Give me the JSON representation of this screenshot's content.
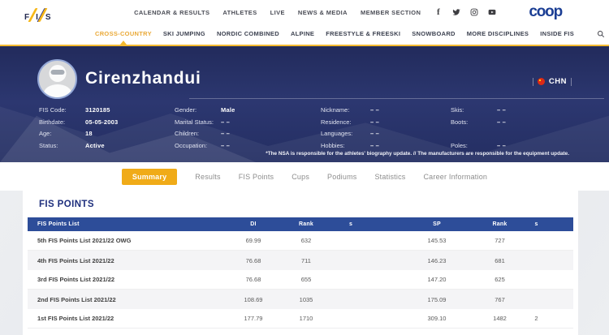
{
  "header": {
    "fis_letters": [
      "F",
      "I",
      "S"
    ],
    "nav_items": [
      "CALENDAR & RESULTS",
      "ATHLETES",
      "LIVE",
      "NEWS & MEDIA",
      "MEMBER SECTION"
    ],
    "social_icons": [
      "facebook",
      "twitter",
      "instagram",
      "youtube"
    ],
    "coop_logo": "coop"
  },
  "discipline_nav": {
    "items": [
      "CROSS-COUNTRY",
      "SKI JUMPING",
      "NORDIC COMBINED",
      "ALPINE",
      "FREESTYLE & FREESKI",
      "SNOWBOARD",
      "MORE DISCIPLINES",
      "INSIDE FIS"
    ],
    "active_index": 0,
    "search_icon": "magnifier"
  },
  "athlete": {
    "name": "Cirenzhandui",
    "nation": "CHN",
    "bio_columns": [
      {
        "fields": [
          {
            "label": "FIS Code:",
            "value": "3120185"
          },
          {
            "label": "Birthdate:",
            "value": "05-05-2003"
          },
          {
            "label": "Age:",
            "value": "18"
          },
          {
            "label": "Status:",
            "value": "Active"
          }
        ]
      },
      {
        "fields": [
          {
            "label": "Gender:",
            "value": "Male"
          },
          {
            "label": "Marital Status:",
            "value": "– –"
          },
          {
            "label": "Children:",
            "value": "– –"
          },
          {
            "label": "Occupation:",
            "value": "– –"
          }
        ]
      },
      {
        "fields": [
          {
            "label": "Nickname:",
            "value": "– –"
          },
          {
            "label": "Residence:",
            "value": "– –"
          },
          {
            "label": "Languages:",
            "value": "– –"
          },
          {
            "label": "Hobbies:",
            "value": "– –"
          }
        ]
      },
      {
        "fields": [
          {
            "label": "Skis:",
            "value": "– –"
          },
          {
            "label": "Boots:",
            "value": "– –"
          },
          {
            "label": "Poles:",
            "value": "– –"
          }
        ]
      }
    ],
    "disclaimer": "*The NSA is responsible for the athletes' biography update. // The manufacturers are responsible for the equipment update."
  },
  "tabs": {
    "items": [
      "Summary",
      "Results",
      "FIS Points",
      "Cups",
      "Podiums",
      "Statistics",
      "Career Information"
    ],
    "active_index": 0
  },
  "fis_points": {
    "title": "FIS POINTS",
    "headers": [
      "FIS Points List",
      "DI",
      "Rank",
      "s",
      "SP",
      "Rank",
      "s"
    ],
    "rows": [
      [
        "5th FIS Points List 2021/22 OWG",
        "69.99",
        "632",
        "",
        "145.53",
        "727",
        ""
      ],
      [
        "4th FIS Points List 2021/22",
        "76.68",
        "711",
        "",
        "146.23",
        "681",
        ""
      ],
      [
        "3rd FIS Points List 2021/22",
        "76.68",
        "655",
        "",
        "147.20",
        "625",
        ""
      ],
      [
        "2nd FIS Points List 2021/22",
        "108.69",
        "1035",
        "",
        "175.09",
        "767",
        ""
      ],
      [
        "1st FIS Points List 2021/22",
        "177.79",
        "1710",
        "",
        "309.10",
        "1482",
        "2"
      ]
    ]
  },
  "colors": {
    "accent_yellow": "#F0AB18",
    "hero_navy": "#2C3770",
    "table_header_navy": "#2D4D99",
    "brand_blue": "#1B3E94",
    "flag_red": "#DD2A16"
  }
}
